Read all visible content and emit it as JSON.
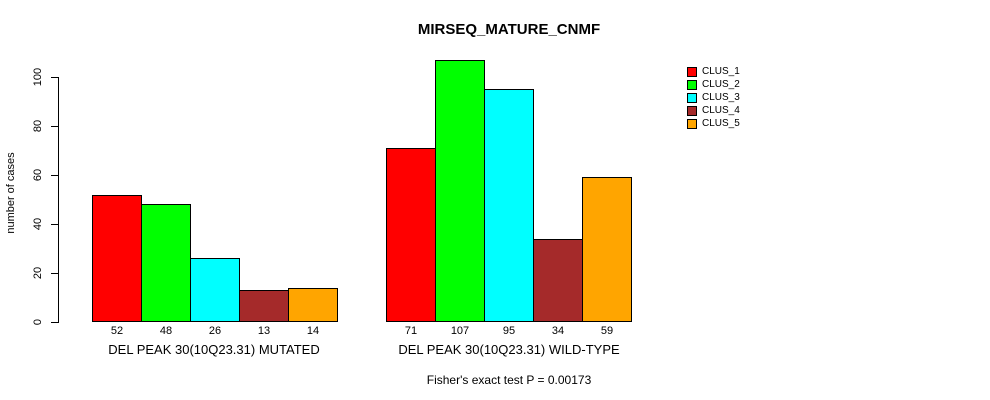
{
  "chart_data": {
    "type": "bar",
    "title": "MIRSEQ_MATURE_CNMF",
    "ylabel": "number of cases",
    "xlabel": "",
    "yticks": [
      0,
      20,
      40,
      60,
      80,
      100
    ],
    "grid": false,
    "legend_position": "right",
    "legend": [
      {
        "name": "CLUS_1",
        "color": "#FF0000"
      },
      {
        "name": "CLUS_2",
        "color": "#00FF00"
      },
      {
        "name": "CLUS_3",
        "color": "#00FFFF"
      },
      {
        "name": "CLUS_4",
        "color": "#A52A2A"
      },
      {
        "name": "CLUS_5",
        "color": "#FFA500"
      }
    ],
    "groups": [
      {
        "label": "DEL PEAK 30(10Q23.31) MUTATED",
        "values": [
          52,
          48,
          26,
          13,
          14
        ]
      },
      {
        "label": "DEL PEAK 30(10Q23.31) WILD-TYPE",
        "values": [
          71,
          107,
          95,
          34,
          59
        ]
      }
    ],
    "caption": "Fisher's exact test P = 0.00173"
  }
}
